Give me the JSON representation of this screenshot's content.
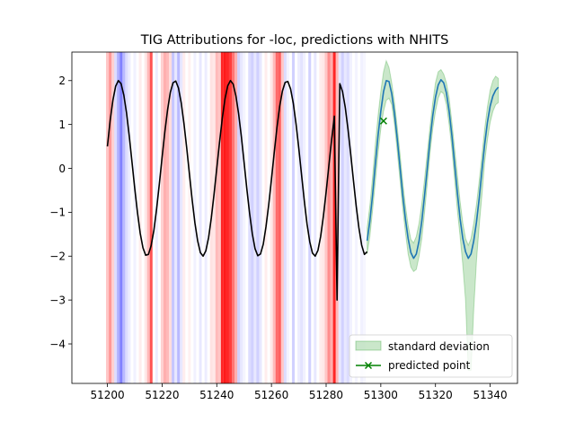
{
  "chart_data": {
    "type": "line",
    "title": "TIG Attributions for -loc, predictions with NHITS",
    "xlabel": "",
    "ylabel": "",
    "xlim": [
      51187,
      51350
    ],
    "ylim": [
      -4.9,
      2.65
    ],
    "xticks": [
      51200,
      51220,
      51240,
      51260,
      51280,
      51300,
      51320,
      51340
    ],
    "yticks": [
      2,
      1,
      0,
      -1,
      -2,
      -3,
      -4
    ],
    "legend": {
      "position": "lower-right",
      "entries": [
        {
          "label": "standard deviation",
          "color": "#2ca02c"
        },
        {
          "label": "predicted point",
          "color": "#008000"
        }
      ]
    },
    "colors": {
      "history": "#000000",
      "forecast": "#1f77b4",
      "band": "#2ca02c",
      "positive_attr": "#ff0000",
      "negative_attr": "#0000ff",
      "point": "#008000"
    },
    "history_series": {
      "name": "",
      "x": [
        51200,
        51201,
        51202,
        51203,
        51204,
        51205,
        51206,
        51207,
        51208,
        51209,
        51210,
        51211,
        51212,
        51213,
        51214,
        51215,
        51216,
        51217,
        51218,
        51219,
        51220,
        51221,
        51222,
        51223,
        51224,
        51225,
        51226,
        51227,
        51228,
        51229,
        51230,
        51231,
        51232,
        51233,
        51234,
        51235,
        51236,
        51237,
        51238,
        51239,
        51240,
        51241,
        51242,
        51243,
        51244,
        51245,
        51246,
        51247,
        51248,
        51249,
        51250,
        51251,
        51252,
        51253,
        51254,
        51255,
        51256,
        51257,
        51258,
        51259,
        51260,
        51261,
        51262,
        51263,
        51264,
        51265,
        51266,
        51267,
        51268,
        51269,
        51270,
        51271,
        51272,
        51273,
        51274,
        51275,
        51276,
        51277,
        51278,
        51279,
        51280,
        51281,
        51282,
        51283,
        51284,
        51285,
        51286,
        51287,
        51288,
        51289,
        51290,
        51291,
        51292,
        51293,
        51294,
        51295
      ],
      "y": [
        0.5,
        1.09,
        1.55,
        1.87,
        2.0,
        1.93,
        1.67,
        1.26,
        0.73,
        0.14,
        -0.46,
        -1.01,
        -1.48,
        -1.81,
        -1.98,
        -1.96,
        -1.76,
        -1.41,
        -0.92,
        -0.35,
        0.25,
        0.83,
        1.33,
        1.73,
        1.95,
        1.99,
        1.83,
        1.49,
        1.02,
        0.47,
        -0.13,
        -0.72,
        -1.24,
        -1.65,
        -1.92,
        -2.0,
        -1.88,
        -1.58,
        -1.13,
        -0.59,
        0.0,
        0.59,
        1.13,
        1.58,
        1.88,
        2.0,
        1.92,
        1.65,
        1.24,
        0.72,
        0.13,
        -0.47,
        -1.02,
        -1.49,
        -1.83,
        -1.99,
        -1.95,
        -1.73,
        -1.33,
        -0.83,
        -0.25,
        0.35,
        0.92,
        1.41,
        1.76,
        1.96,
        1.98,
        1.81,
        1.48,
        1.01,
        0.46,
        -0.14,
        -0.73,
        -1.26,
        -1.67,
        -1.93,
        -2.0,
        -1.87,
        -1.55,
        -1.09,
        -0.54,
        0.06,
        0.65,
        1.19,
        -3.0,
        1.93,
        1.75,
        1.39,
        0.89,
        0.32,
        -0.28,
        -0.86,
        -1.36,
        -1.75,
        -1.96,
        -1.9
      ]
    },
    "forecast_series": {
      "name": "",
      "x": [
        51295,
        51296,
        51297,
        51298,
        51299,
        51300,
        51301,
        51302,
        51303,
        51304,
        51305,
        51306,
        51307,
        51308,
        51309,
        51310,
        51311,
        51312,
        51313,
        51314,
        51315,
        51316,
        51317,
        51318,
        51319,
        51320,
        51321,
        51322,
        51323,
        51324,
        51325,
        51326,
        51327,
        51328,
        51329,
        51330,
        51331,
        51332,
        51333,
        51334,
        51335,
        51336,
        51337,
        51338,
        51339,
        51340,
        51341,
        51342,
        51343
      ],
      "y": [
        -1.65,
        -1.2,
        -0.6,
        0.1,
        0.75,
        1.3,
        1.75,
        2.0,
        1.98,
        1.7,
        1.25,
        0.68,
        0.05,
        -0.6,
        -1.15,
        -1.6,
        -1.92,
        -2.05,
        -1.95,
        -1.65,
        -1.2,
        -0.62,
        0.0,
        0.65,
        1.2,
        1.62,
        1.9,
        2.02,
        1.95,
        1.72,
        1.3,
        0.75,
        0.1,
        -0.55,
        -1.15,
        -1.6,
        -1.9,
        -2.05,
        -1.95,
        -1.65,
        -1.22,
        -0.68,
        -0.05,
        0.55,
        1.05,
        1.42,
        1.65,
        1.78,
        1.85
      ],
      "upper": [
        -1.35,
        -0.85,
        -0.2,
        0.55,
        1.2,
        1.75,
        2.2,
        2.45,
        2.3,
        1.95,
        1.5,
        0.95,
        0.35,
        -0.3,
        -0.85,
        -1.3,
        -1.62,
        -1.7,
        -1.55,
        -1.25,
        -0.8,
        -0.25,
        0.35,
        0.95,
        1.5,
        1.95,
        2.2,
        2.25,
        2.15,
        1.95,
        1.6,
        1.05,
        0.45,
        -0.15,
        -0.75,
        -1.25,
        -1.6,
        -1.75,
        -1.6,
        -1.25,
        -0.82,
        -0.28,
        0.3,
        0.9,
        1.4,
        1.78,
        2.0,
        2.1,
        2.05
      ],
      "lower": [
        -1.95,
        -1.55,
        -0.95,
        -0.3,
        0.35,
        0.9,
        1.3,
        1.55,
        1.6,
        1.45,
        1.0,
        0.4,
        -0.25,
        -0.9,
        -1.45,
        -1.95,
        -2.25,
        -2.35,
        -2.3,
        -2.0,
        -1.6,
        -1.0,
        -0.35,
        0.35,
        0.9,
        1.3,
        1.6,
        1.75,
        1.7,
        1.45,
        1.0,
        0.45,
        -0.25,
        -0.95,
        -1.55,
        -2.2,
        -3.0,
        -4.6,
        -4.6,
        -3.2,
        -2.1,
        -1.3,
        -0.6,
        0.15,
        0.65,
        1.05,
        1.3,
        1.45,
        1.5
      ]
    },
    "predicted_point": {
      "x": 51301,
      "y": 1.08
    },
    "attribution_bands": [
      {
        "x": 51200,
        "v": 0.25
      },
      {
        "x": 51201,
        "v": 0.45
      },
      {
        "x": 51202,
        "v": 0.2
      },
      {
        "x": 51203,
        "v": -0.15
      },
      {
        "x": 51204,
        "v": -0.35
      },
      {
        "x": 51205,
        "v": -0.55
      },
      {
        "x": 51206,
        "v": -0.3
      },
      {
        "x": 51207,
        "v": -0.15
      },
      {
        "x": 51208,
        "v": -0.08
      },
      {
        "x": 51210,
        "v": -0.06
      },
      {
        "x": 51212,
        "v": 0.08
      },
      {
        "x": 51214,
        "v": 0.1
      },
      {
        "x": 51215,
        "v": 0.3
      },
      {
        "x": 51216,
        "v": 0.75
      },
      {
        "x": 51218,
        "v": -0.08
      },
      {
        "x": 51220,
        "v": 0.2
      },
      {
        "x": 51221,
        "v": 0.35
      },
      {
        "x": 51222,
        "v": 0.3
      },
      {
        "x": 51223,
        "v": 0.15
      },
      {
        "x": 51224,
        "v": -0.25
      },
      {
        "x": 51225,
        "v": -0.1
      },
      {
        "x": 51226,
        "v": -0.3
      },
      {
        "x": 51227,
        "v": -0.1
      },
      {
        "x": 51228,
        "v": 0.08
      },
      {
        "x": 51230,
        "v": 0.06
      },
      {
        "x": 51232,
        "v": -0.06
      },
      {
        "x": 51234,
        "v": -0.1
      },
      {
        "x": 51236,
        "v": -0.08
      },
      {
        "x": 51238,
        "v": 0.12
      },
      {
        "x": 51239,
        "v": 0.1
      },
      {
        "x": 51240,
        "v": 0.3
      },
      {
        "x": 51241,
        "v": 0.25
      },
      {
        "x": 51242,
        "v": 0.95
      },
      {
        "x": 51243,
        "v": 1.0
      },
      {
        "x": 51244,
        "v": 0.95
      },
      {
        "x": 51245,
        "v": 0.85
      },
      {
        "x": 51246,
        "v": 0.6
      },
      {
        "x": 51247,
        "v": 0.35
      },
      {
        "x": 51248,
        "v": -0.2
      },
      {
        "x": 51249,
        "v": -0.1
      },
      {
        "x": 51250,
        "v": -0.05
      },
      {
        "x": 51252,
        "v": -0.15
      },
      {
        "x": 51253,
        "v": -0.2
      },
      {
        "x": 51254,
        "v": -0.1
      },
      {
        "x": 51255,
        "v": -0.2
      },
      {
        "x": 51256,
        "v": -0.1
      },
      {
        "x": 51258,
        "v": 0.08
      },
      {
        "x": 51260,
        "v": 0.1
      },
      {
        "x": 51261,
        "v": 0.3
      },
      {
        "x": 51262,
        "v": 0.65
      },
      {
        "x": 51263,
        "v": 0.7
      },
      {
        "x": 51264,
        "v": 0.25
      },
      {
        "x": 51265,
        "v": -0.15
      },
      {
        "x": 51266,
        "v": -0.05
      },
      {
        "x": 51268,
        "v": -0.2
      },
      {
        "x": 51270,
        "v": -0.08
      },
      {
        "x": 51271,
        "v": -0.12
      },
      {
        "x": 51272,
        "v": -0.06
      },
      {
        "x": 51274,
        "v": -0.2
      },
      {
        "x": 51276,
        "v": -0.1
      },
      {
        "x": 51278,
        "v": 0.08
      },
      {
        "x": 51279,
        "v": 0.1
      },
      {
        "x": 51280,
        "v": 0.25
      },
      {
        "x": 51281,
        "v": 0.5
      },
      {
        "x": 51282,
        "v": 0.35
      },
      {
        "x": 51283,
        "v": 0.95
      },
      {
        "x": 51284,
        "v": 0.3
      },
      {
        "x": 51285,
        "v": -0.1
      },
      {
        "x": 51286,
        "v": -0.2
      },
      {
        "x": 51287,
        "v": -0.1
      },
      {
        "x": 51288,
        "v": -0.15
      },
      {
        "x": 51289,
        "v": -0.06
      },
      {
        "x": 51291,
        "v": -0.05
      },
      {
        "x": 51293,
        "v": -0.06
      },
      {
        "x": 51294,
        "v": -0.04
      }
    ]
  }
}
